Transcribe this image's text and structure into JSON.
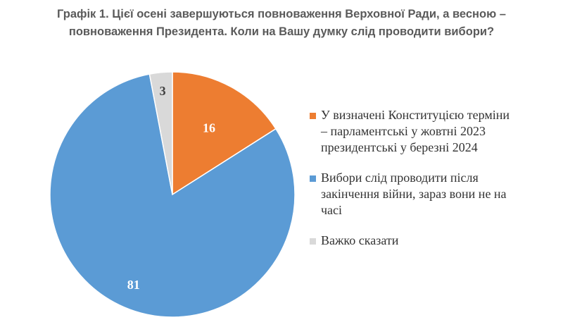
{
  "chart_data": {
    "type": "pie",
    "title_lines": [
      "Графік 1. Цієї осені завершуються повноваження Верховної Ради, а весною –",
      "повноваження Президента. Коли на Вашу думку слід проводити вибори?"
    ],
    "slices": [
      {
        "label_lines": [
          "У визначені Конституцією терміни",
          "– парламентські у жовтні 2023",
          "президентські у березні 2024"
        ],
        "value": 16,
        "value_label": "16",
        "color": "#ED7D31",
        "label_color": "#ffffff"
      },
      {
        "label_lines": [
          "Вибори слід проводити після",
          "закінчення війни, зараз вони не на",
          "часі"
        ],
        "value": 81,
        "value_label": "81",
        "color": "#5B9BD5",
        "label_color": "#ffffff"
      },
      {
        "label_lines": [
          "Важко сказати"
        ],
        "value": 3,
        "value_label": "3",
        "color": "#D9D9D9",
        "label_color": "#404040"
      }
    ],
    "legend_position": "right"
  }
}
